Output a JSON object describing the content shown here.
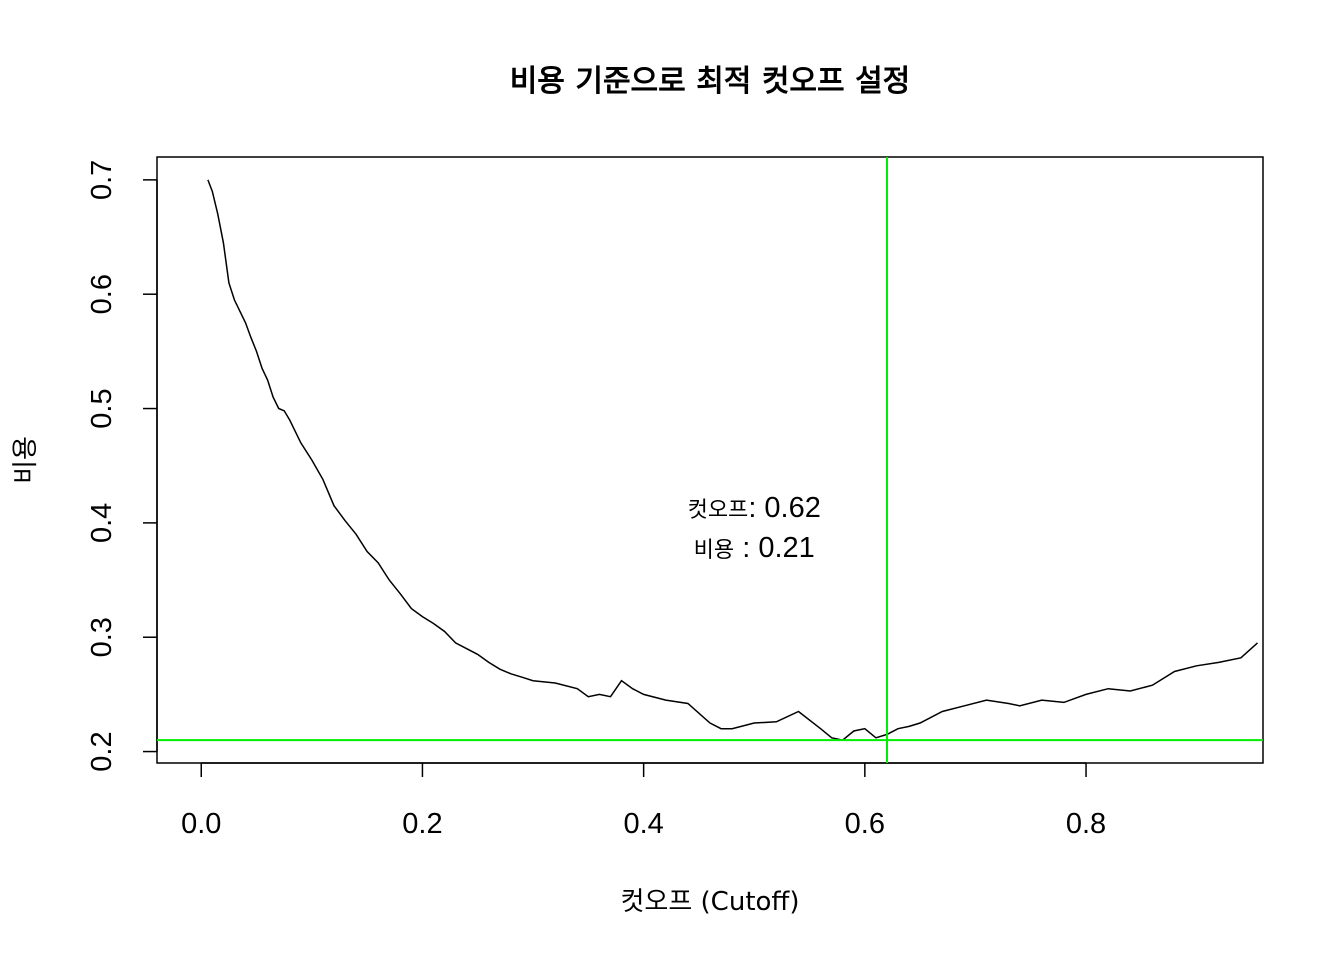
{
  "chart_data": {
    "type": "line",
    "title": "비용 기준으로 최적 컷오프 설정",
    "xlabel": "컷오프 (Cutoff)",
    "ylabel": "비용",
    "xlim": [
      -0.04,
      0.96
    ],
    "ylim": [
      0.19,
      0.72
    ],
    "xticks": [
      0.0,
      0.2,
      0.4,
      0.6,
      0.8
    ],
    "xtick_labels": [
      "0.0",
      "0.2",
      "0.4",
      "0.6",
      "0.8"
    ],
    "yticks": [
      0.2,
      0.3,
      0.4,
      0.5,
      0.6,
      0.7
    ],
    "ytick_labels": [
      "0.2",
      "0.3",
      "0.4",
      "0.5",
      "0.6",
      "0.7"
    ],
    "grid": false,
    "series": [
      {
        "color": "#000000",
        "x": [
          0.006,
          0.01,
          0.015,
          0.02,
          0.025,
          0.03,
          0.035,
          0.04,
          0.045,
          0.05,
          0.055,
          0.06,
          0.065,
          0.07,
          0.075,
          0.08,
          0.09,
          0.1,
          0.11,
          0.12,
          0.13,
          0.14,
          0.15,
          0.16,
          0.17,
          0.18,
          0.19,
          0.2,
          0.21,
          0.22,
          0.23,
          0.24,
          0.25,
          0.26,
          0.27,
          0.28,
          0.29,
          0.3,
          0.32,
          0.34,
          0.35,
          0.36,
          0.37,
          0.38,
          0.39,
          0.4,
          0.42,
          0.44,
          0.46,
          0.47,
          0.48,
          0.5,
          0.52,
          0.54,
          0.56,
          0.57,
          0.58,
          0.59,
          0.6,
          0.61,
          0.62,
          0.63,
          0.64,
          0.65,
          0.67,
          0.69,
          0.71,
          0.73,
          0.74,
          0.76,
          0.78,
          0.8,
          0.82,
          0.84,
          0.86,
          0.88,
          0.9,
          0.92,
          0.94,
          0.955
        ],
        "y": [
          0.7,
          0.69,
          0.67,
          0.645,
          0.61,
          0.595,
          0.585,
          0.575,
          0.562,
          0.55,
          0.535,
          0.525,
          0.51,
          0.5,
          0.498,
          0.49,
          0.47,
          0.455,
          0.438,
          0.415,
          0.402,
          0.39,
          0.375,
          0.365,
          0.35,
          0.338,
          0.325,
          0.318,
          0.312,
          0.305,
          0.295,
          0.29,
          0.285,
          0.278,
          0.272,
          0.268,
          0.265,
          0.262,
          0.26,
          0.255,
          0.248,
          0.25,
          0.248,
          0.262,
          0.255,
          0.25,
          0.245,
          0.242,
          0.225,
          0.22,
          0.22,
          0.225,
          0.226,
          0.235,
          0.22,
          0.212,
          0.21,
          0.218,
          0.22,
          0.212,
          0.215,
          0.22,
          0.222,
          0.225,
          0.235,
          0.24,
          0.245,
          0.242,
          0.24,
          0.245,
          0.243,
          0.25,
          0.255,
          0.253,
          0.258,
          0.27,
          0.275,
          0.278,
          0.282,
          0.295
        ]
      },
      {
        "color": "#00ee00",
        "orientation": "vertical",
        "x": [
          0.62,
          0.62
        ],
        "y": [
          0.19,
          0.72
        ]
      },
      {
        "color": "#00ee00",
        "orientation": "horizontal",
        "x": [
          -0.04,
          0.96
        ],
        "y": [
          0.21,
          0.21
        ]
      }
    ],
    "annotations": [
      {
        "label": "컷오프",
        "value": ": 0.62",
        "x": 0.5,
        "y": 0.405
      },
      {
        "label": "비용",
        "value": " : 0.21",
        "x": 0.5,
        "y": 0.37
      }
    ]
  }
}
